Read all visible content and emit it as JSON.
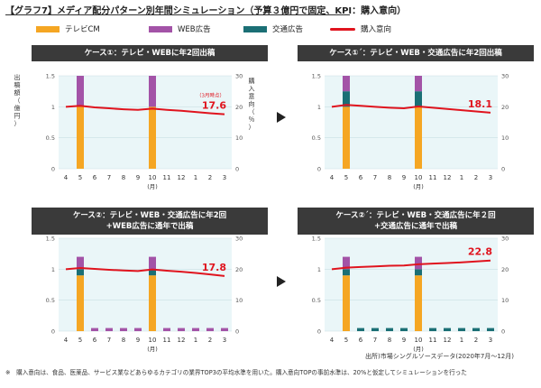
{
  "title": "【グラフ7】メディア配分パターン別年間シミュレーション（予算３億円で固定、KPI：購入意向）",
  "legend": {
    "tv": "テレビCM",
    "web": "WEB広告",
    "transit": "交通広告",
    "intent": "購入意向"
  },
  "colors": {
    "tv": "#F5A623",
    "web": "#A353A7",
    "transit": "#1B6F75",
    "intent": "#E0141E",
    "plot_bg": "#EAF6F8",
    "header_bg": "#3A3A3A"
  },
  "source": "出所)市場シングルソースデータ(2020年7月〜12月)",
  "note": "※　購入意向は、食品、医薬品、サービス業などあらゆるカテゴリの業界TOP3の平均水準を用いた。購入意向TOPの事前水準は、20%と仮定してシミュレーションを行った",
  "chart_data": [
    {
      "type": "bar",
      "title": "ケース①：テレビ・WEBに年2回出稿",
      "categories": [
        "4",
        "5",
        "6",
        "7",
        "8",
        "9",
        "10",
        "11",
        "12",
        "1",
        "2",
        "3"
      ],
      "xsub": "(月)",
      "ylabel_left": "出稿額（億円）",
      "ylabel_right": "購入意向（％）",
      "ylim_left": [
        0,
        1.5
      ],
      "ylim_right": [
        0,
        30
      ],
      "yticks_left": [
        "0",
        "0.5",
        "1",
        "1.5"
      ],
      "yticks_right": [
        "0",
        "10",
        "20",
        "30"
      ],
      "stack": {
        "tv": [
          0,
          1.0,
          0,
          0,
          0,
          0,
          1.0,
          0,
          0,
          0,
          0,
          0
        ],
        "transit": [
          0,
          0,
          0,
          0,
          0,
          0,
          0,
          0,
          0,
          0,
          0,
          0
        ],
        "web": [
          0,
          0.5,
          0,
          0,
          0,
          0,
          0.5,
          0,
          0,
          0,
          0,
          0
        ]
      },
      "line": [
        20.0,
        20.3,
        19.8,
        19.5,
        19.2,
        19.0,
        19.4,
        19.0,
        18.7,
        18.3,
        17.9,
        17.6
      ],
      "end_label": "17.6",
      "annotation": "（3月時点）"
    },
    {
      "type": "bar",
      "title": "ケース①´：テレビ・WEB・交通広告に年2回出稿",
      "categories": [
        "4",
        "5",
        "6",
        "7",
        "8",
        "9",
        "10",
        "11",
        "12",
        "1",
        "2",
        "3"
      ],
      "xsub": "(月)",
      "ylim_left": [
        0,
        1.5
      ],
      "ylim_right": [
        0,
        30
      ],
      "yticks_left": [
        "0",
        "0.5",
        "1",
        "1.5"
      ],
      "yticks_right": [
        "0",
        "10",
        "20",
        "30"
      ],
      "stack": {
        "tv": [
          0,
          1.0,
          0,
          0,
          0,
          0,
          1.0,
          0,
          0,
          0,
          0,
          0
        ],
        "transit": [
          0,
          0.25,
          0,
          0,
          0,
          0,
          0.25,
          0,
          0,
          0,
          0,
          0
        ],
        "web": [
          0,
          0.25,
          0,
          0,
          0,
          0,
          0.25,
          0,
          0,
          0,
          0,
          0
        ]
      },
      "line": [
        20.0,
        20.6,
        20.3,
        20.0,
        19.7,
        19.5,
        20.1,
        19.7,
        19.3,
        18.9,
        18.5,
        18.1
      ],
      "end_label": "18.1"
    },
    {
      "type": "bar",
      "title": "ケース②：テレビ・WEB・交通広告に年2回\n+WEB広告に通年で出稿",
      "categories": [
        "4",
        "5",
        "6",
        "7",
        "8",
        "9",
        "10",
        "11",
        "12",
        "1",
        "2",
        "3"
      ],
      "xsub": "(月)",
      "ylim_left": [
        0,
        1.5
      ],
      "ylim_right": [
        0,
        30
      ],
      "yticks_left": [
        "0",
        "0.5",
        "1",
        "1.5"
      ],
      "yticks_right": [
        "0",
        "10",
        "20",
        "30"
      ],
      "stack": {
        "tv": [
          0,
          0.9,
          0,
          0,
          0,
          0,
          0.9,
          0,
          0,
          0,
          0,
          0
        ],
        "transit": [
          0,
          0.1,
          0,
          0,
          0,
          0,
          0.1,
          0,
          0,
          0,
          0,
          0
        ],
        "web": [
          0,
          0.2,
          0.05,
          0.05,
          0.05,
          0.05,
          0.2,
          0.05,
          0.05,
          0.05,
          0.05,
          0.05
        ]
      },
      "line": [
        20.0,
        20.4,
        20.1,
        19.8,
        19.6,
        19.4,
        19.9,
        19.5,
        19.2,
        18.8,
        18.3,
        17.8
      ],
      "end_label": "17.8"
    },
    {
      "type": "bar",
      "title": "ケース②´：テレビ・WEB・交通広告に年２回\n+交通広告に通年で出稿",
      "categories": [
        "4",
        "5",
        "6",
        "7",
        "8",
        "9",
        "10",
        "11",
        "12",
        "1",
        "2",
        "3"
      ],
      "xsub": "(月)",
      "ylim_left": [
        0,
        1.5
      ],
      "ylim_right": [
        0,
        30
      ],
      "yticks_left": [
        "0",
        "0.5",
        "1",
        "1.5"
      ],
      "yticks_right": [
        "0",
        "10",
        "20",
        "30"
      ],
      "stack": {
        "tv": [
          0,
          0.9,
          0,
          0,
          0,
          0,
          0.9,
          0,
          0,
          0,
          0,
          0
        ],
        "transit": [
          0,
          0.1,
          0.05,
          0.05,
          0.05,
          0.05,
          0.1,
          0.05,
          0.05,
          0.05,
          0.05,
          0.05
        ],
        "web": [
          0,
          0.2,
          0,
          0,
          0,
          0,
          0.2,
          0,
          0,
          0,
          0,
          0
        ]
      },
      "line": [
        20.0,
        20.5,
        20.7,
        20.9,
        21.1,
        21.2,
        21.6,
        21.8,
        22.0,
        22.2,
        22.5,
        22.8
      ],
      "end_label": "22.8"
    }
  ]
}
